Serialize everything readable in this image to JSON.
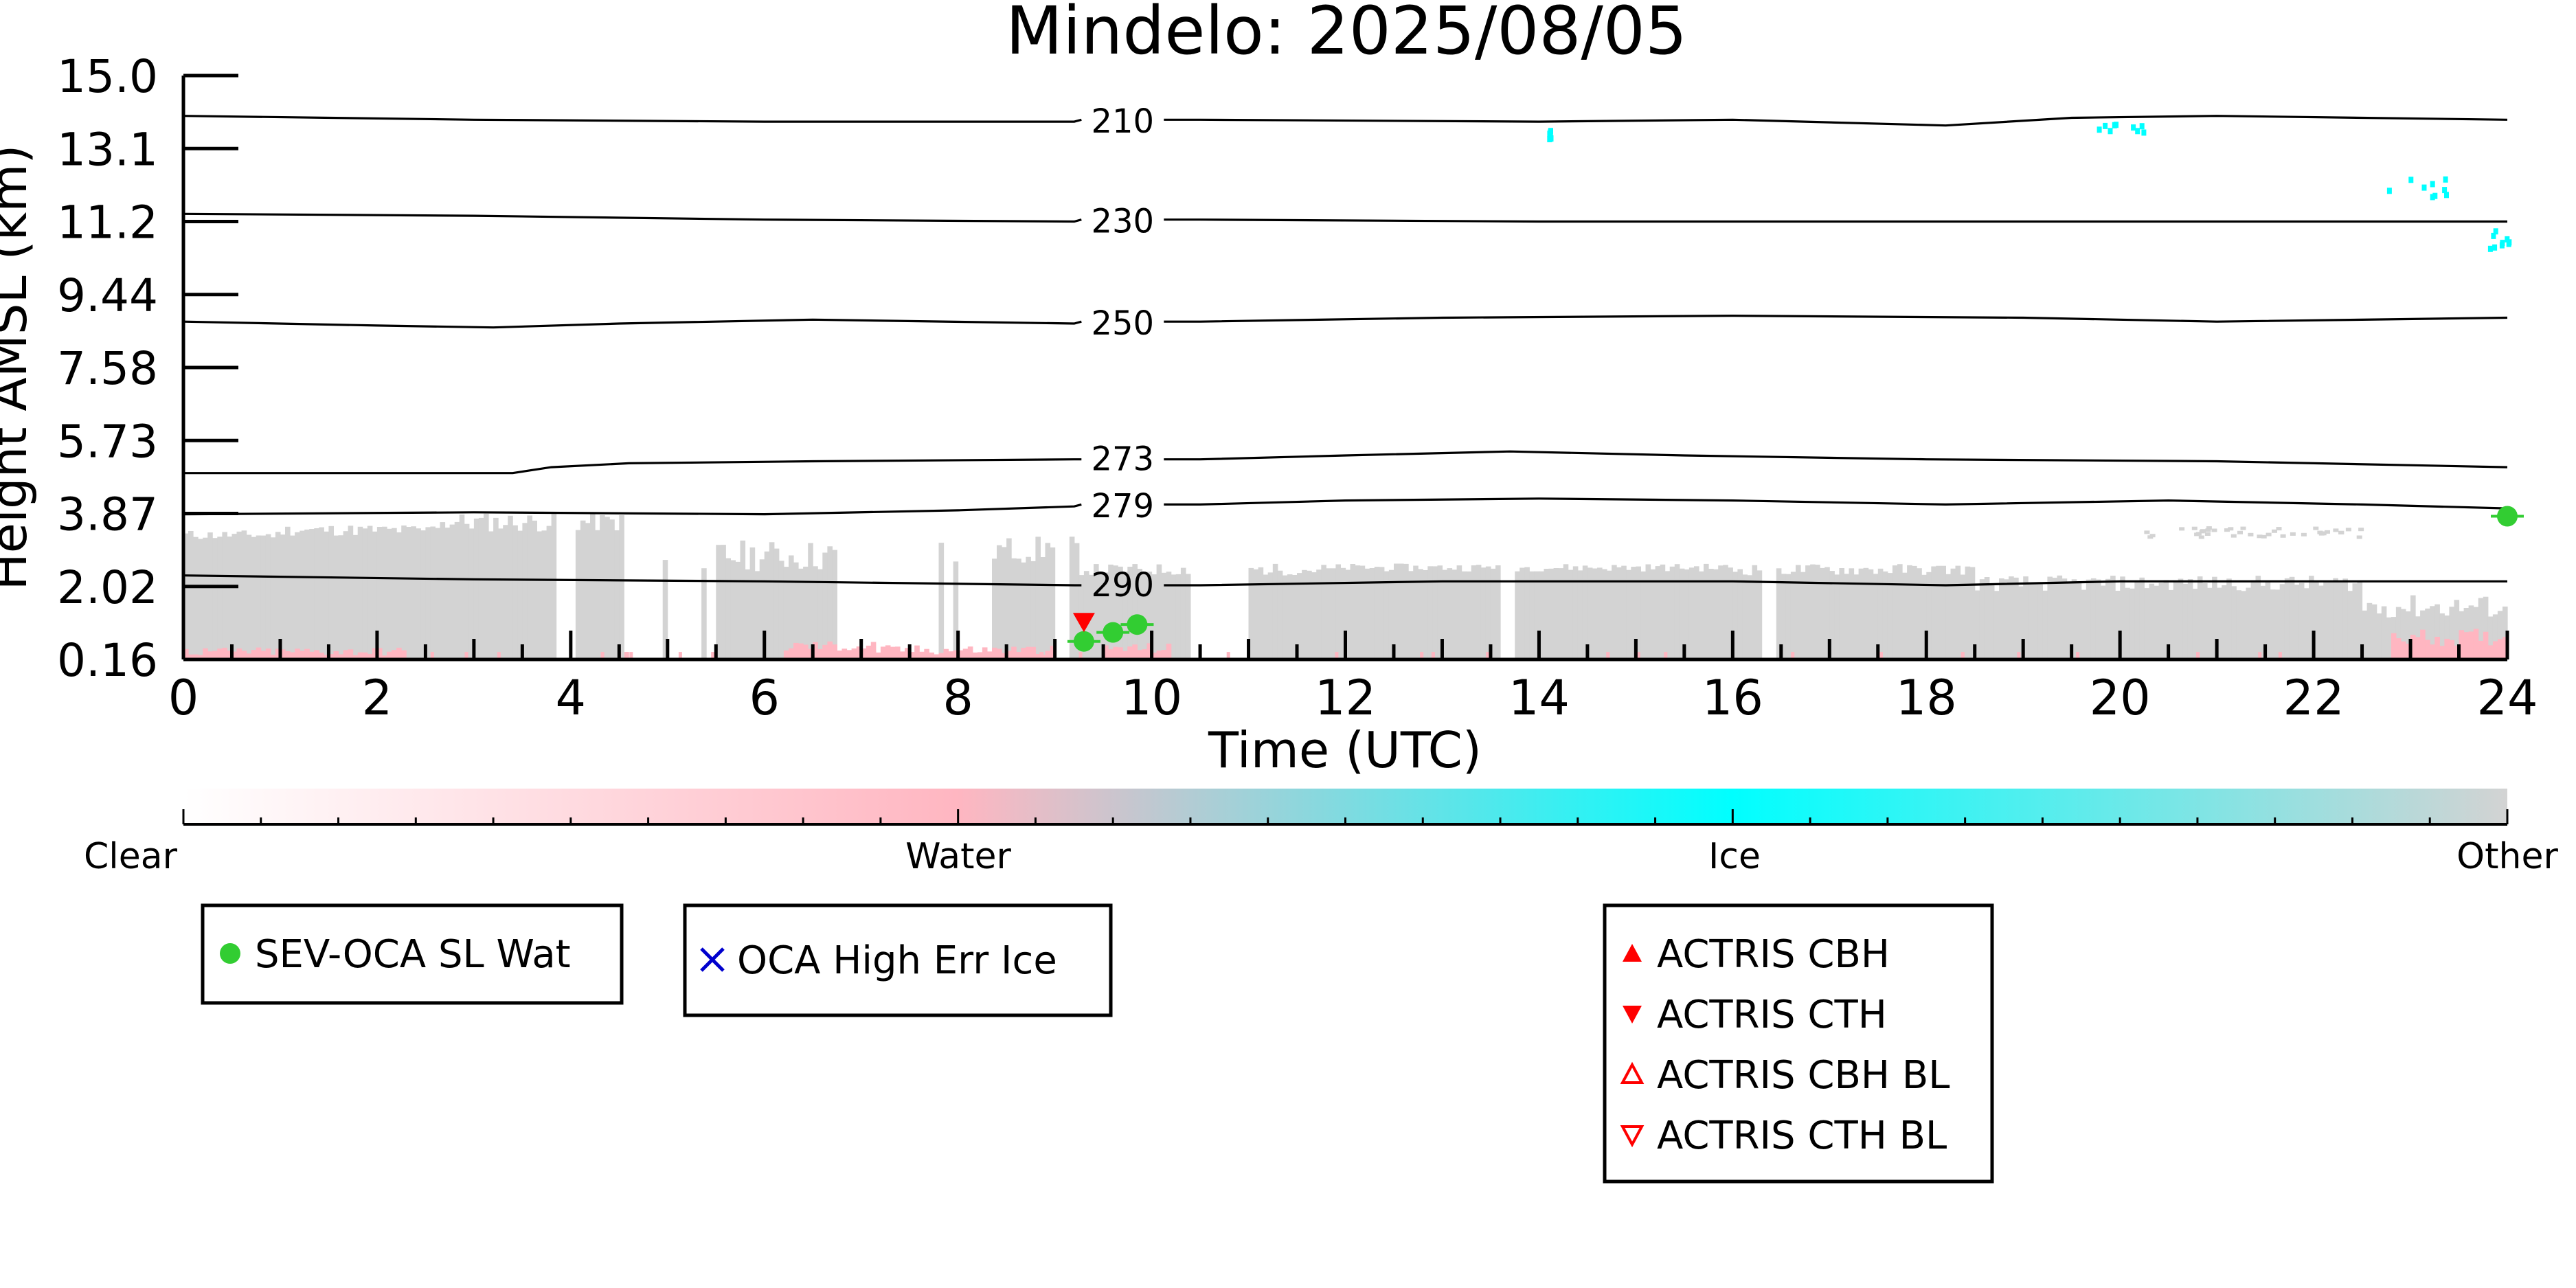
{
  "chart_data": {
    "type": "heatmap",
    "title": "Mindelo: 2025/08/05",
    "xlabel": "Time (UTC)",
    "ylabel": "Height AMSL (km)",
    "xlim": [
      0,
      24
    ],
    "ylim": [
      0.16,
      15.0
    ],
    "x_ticks": [
      0,
      2,
      4,
      6,
      8,
      10,
      12,
      14,
      16,
      18,
      20,
      22,
      24
    ],
    "y_ticks": [
      0.16,
      2.02,
      3.87,
      5.73,
      7.58,
      9.44,
      11.2,
      13.1,
      15.0
    ],
    "y_tick_labels": [
      "0.16",
      "2.02",
      "3.87",
      "5.73",
      "7.58",
      "9.44",
      "11.2",
      "13.1",
      "15.0"
    ],
    "colorbar": {
      "categories": [
        "Clear",
        "Water",
        "Ice",
        "Other"
      ],
      "colors": [
        "#ffffff",
        "#ffb6c1",
        "#00ffff",
        "#d3d3d3"
      ]
    },
    "temperature_contours": [
      {
        "label": "210",
        "label_x": 9.7,
        "points": [
          [
            0,
            13.95
          ],
          [
            3,
            13.85
          ],
          [
            6,
            13.8
          ],
          [
            9.2,
            13.8
          ],
          [
            10.5,
            13.85
          ],
          [
            14,
            13.8
          ],
          [
            16,
            13.85
          ],
          [
            18.2,
            13.7
          ],
          [
            19.5,
            13.9
          ],
          [
            21,
            13.95
          ],
          [
            24,
            13.85
          ]
        ]
      },
      {
        "label": "230",
        "label_x": 9.7,
        "points": [
          [
            0,
            11.4
          ],
          [
            3,
            11.35
          ],
          [
            6,
            11.25
          ],
          [
            9.2,
            11.2
          ],
          [
            10.5,
            11.25
          ],
          [
            14,
            11.2
          ],
          [
            17,
            11.2
          ],
          [
            20,
            11.2
          ],
          [
            24,
            11.2
          ]
        ]
      },
      {
        "label": "250",
        "label_x": 9.7,
        "points": [
          [
            0,
            8.75
          ],
          [
            2,
            8.65
          ],
          [
            3.2,
            8.6
          ],
          [
            4.5,
            8.7
          ],
          [
            6.5,
            8.8
          ],
          [
            9.2,
            8.7
          ],
          [
            10.5,
            8.75
          ],
          [
            13,
            8.85
          ],
          [
            16,
            8.9
          ],
          [
            19,
            8.85
          ],
          [
            21,
            8.75
          ],
          [
            24,
            8.85
          ]
        ]
      },
      {
        "label": "273",
        "label_x": 9.7,
        "points": [
          [
            0,
            4.9
          ],
          [
            2,
            4.9
          ],
          [
            3.4,
            4.9
          ],
          [
            3.8,
            5.05
          ],
          [
            4.6,
            5.15
          ],
          [
            6.5,
            5.2
          ],
          [
            9.2,
            5.25
          ],
          [
            10.5,
            5.25
          ],
          [
            12,
            5.35
          ],
          [
            13.7,
            5.45
          ],
          [
            15.5,
            5.35
          ],
          [
            18,
            5.25
          ],
          [
            21,
            5.2
          ],
          [
            24,
            5.05
          ]
        ]
      },
      {
        "label": "279",
        "label_x": 9.7,
        "points": [
          [
            0,
            3.85
          ],
          [
            3,
            3.9
          ],
          [
            6,
            3.85
          ],
          [
            8,
            3.95
          ],
          [
            9.2,
            4.05
          ],
          [
            10.5,
            4.1
          ],
          [
            12,
            4.2
          ],
          [
            14,
            4.25
          ],
          [
            16,
            4.2
          ],
          [
            18.2,
            4.1
          ],
          [
            20.5,
            4.2
          ],
          [
            22.5,
            4.1
          ],
          [
            24,
            4.0
          ]
        ]
      },
      {
        "label": "290",
        "label_x": 9.7,
        "points": [
          [
            0,
            2.3
          ],
          [
            3,
            2.2
          ],
          [
            6,
            2.15
          ],
          [
            9.2,
            2.05
          ],
          [
            10.5,
            2.05
          ],
          [
            13,
            2.15
          ],
          [
            16,
            2.15
          ],
          [
            18.2,
            2.05
          ],
          [
            20,
            2.15
          ],
          [
            22,
            2.15
          ],
          [
            24,
            2.15
          ]
        ]
      }
    ],
    "markers": {
      "sev_oca_sl_wat": [
        [
          9.3,
          0.62
        ],
        [
          9.6,
          0.85
        ],
        [
          9.85,
          1.05
        ],
        [
          24.0,
          3.8
        ]
      ],
      "actris_cth": [
        [
          9.3,
          1.1
        ]
      ]
    },
    "legends": [
      {
        "items": [
          {
            "label": "SEV-OCA SL Wat",
            "marker": "circle",
            "color": "#32cd32"
          }
        ]
      },
      {
        "items": [
          {
            "label": "OCA High Err Ice",
            "marker": "x",
            "color": "#0000cd"
          }
        ]
      },
      {
        "items": [
          {
            "label": "ACTRIS CBH",
            "marker": "triangle-up",
            "color": "#ff0000"
          },
          {
            "label": "ACTRIS CTH",
            "marker": "triangle-down",
            "color": "#ff0000"
          },
          {
            "label": "ACTRIS CBH BL",
            "marker": "triangle-up-open",
            "color": "#ff0000"
          },
          {
            "label": "ACTRIS CTH BL",
            "marker": "triangle-down-open",
            "color": "#ff0000"
          }
        ]
      }
    ]
  }
}
